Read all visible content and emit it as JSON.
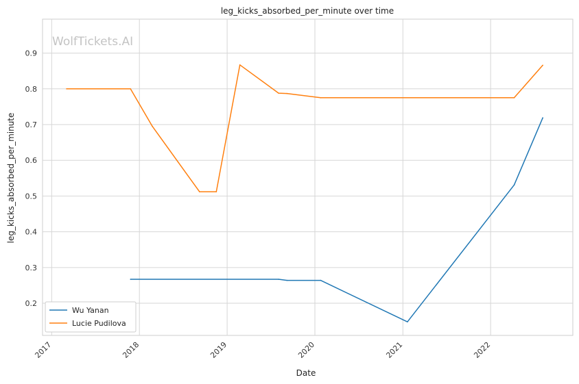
{
  "chart_data": {
    "type": "line",
    "title": "leg_kicks_absorbed_per_minute over time",
    "xlabel": "Date",
    "ylabel": "leg_kicks_absorbed_per_minute",
    "watermark": "WolfTickets.AI",
    "x_ticks": [
      "2017",
      "2018",
      "2019",
      "2020",
      "2021",
      "2022"
    ],
    "y_ticks": [
      "0.2",
      "0.3",
      "0.4",
      "0.5",
      "0.6",
      "0.7",
      "0.8",
      "0.9"
    ],
    "xlim": [
      "2016-11-24",
      "2022-12-09"
    ],
    "ylim": [
      0.11,
      0.995
    ],
    "grid": true,
    "legend_position": "lower-left",
    "series": [
      {
        "name": "Wu Yanan",
        "color": "#1f77b4",
        "x": [
          "2017-11-25",
          "2019-08-03",
          "2019-09-07",
          "2020-01-25",
          "2021-01-20",
          "2022-04-09",
          "2022-08-06"
        ],
        "y": [
          0.267,
          0.267,
          0.264,
          0.264,
          0.148,
          0.531,
          0.719
        ]
      },
      {
        "name": "Lucie Pudilova",
        "color": "#ff7f0e",
        "x": [
          "2017-03-04",
          "2017-11-25",
          "2018-02-24",
          "2018-09-08",
          "2018-11-17",
          "2019-02-23",
          "2019-08-03",
          "2019-09-07",
          "2020-01-25",
          "2022-04-09",
          "2022-08-06"
        ],
        "y": [
          0.8,
          0.8,
          0.695,
          0.512,
          0.512,
          0.867,
          0.788,
          0.787,
          0.775,
          0.775,
          0.866
        ]
      }
    ]
  }
}
